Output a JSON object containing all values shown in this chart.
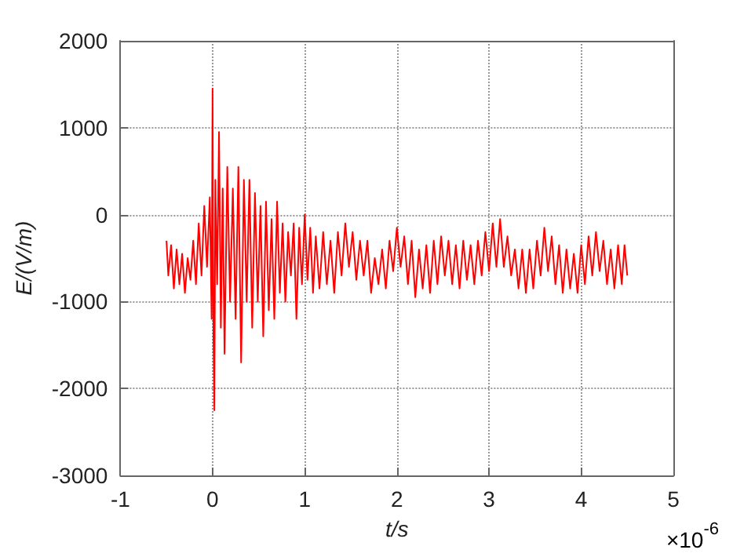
{
  "chart_data": {
    "type": "line",
    "xlabel": "t/s",
    "ylabel": "E/(V/m)",
    "annotations": [
      "×10$^{-6}$"
    ],
    "xlim": [
      -1,
      5
    ],
    "xticks": [
      -1,
      0,
      1,
      2,
      3,
      4,
      5
    ],
    "ylim": [
      -3000,
      2000
    ],
    "yticks": [
      -3000,
      -2000,
      -1000,
      0,
      1000,
      2000
    ],
    "grid": true,
    "marker": "none",
    "line_style": "solid",
    "series": [
      {
        "color": "#ff0000",
        "x": [
          -0.5,
          -0.48,
          -0.45,
          -0.42,
          -0.39,
          -0.36,
          -0.33,
          -0.3,
          -0.27,
          -0.24,
          -0.21,
          -0.18,
          -0.15,
          -0.12,
          -0.09,
          -0.06,
          -0.03,
          -0.01,
          0.0,
          0.01,
          0.02,
          0.03,
          0.05,
          0.07,
          0.09,
          0.11,
          0.13,
          0.16,
          0.19,
          0.22,
          0.25,
          0.28,
          0.31,
          0.34,
          0.37,
          0.4,
          0.43,
          0.46,
          0.49,
          0.52,
          0.55,
          0.58,
          0.61,
          0.64,
          0.67,
          0.7,
          0.73,
          0.76,
          0.79,
          0.82,
          0.85,
          0.88,
          0.91,
          0.94,
          0.97,
          1.0,
          1.03,
          1.06,
          1.09,
          1.12,
          1.16,
          1.2,
          1.24,
          1.28,
          1.32,
          1.36,
          1.4,
          1.44,
          1.48,
          1.52,
          1.56,
          1.6,
          1.64,
          1.68,
          1.72,
          1.76,
          1.8,
          1.84,
          1.88,
          1.92,
          1.96,
          2.0,
          2.04,
          2.08,
          2.12,
          2.16,
          2.2,
          2.24,
          2.28,
          2.32,
          2.36,
          2.4,
          2.44,
          2.48,
          2.52,
          2.56,
          2.6,
          2.64,
          2.68,
          2.72,
          2.76,
          2.8,
          2.84,
          2.88,
          2.92,
          2.96,
          3.0,
          3.04,
          3.08,
          3.12,
          3.16,
          3.2,
          3.24,
          3.28,
          3.32,
          3.36,
          3.4,
          3.44,
          3.48,
          3.52,
          3.56,
          3.6,
          3.64,
          3.68,
          3.72,
          3.76,
          3.8,
          3.84,
          3.88,
          3.92,
          3.96,
          4.0,
          4.04,
          4.08,
          4.12,
          4.16,
          4.2,
          4.24,
          4.28,
          4.32,
          4.36,
          4.4,
          4.44,
          4.47,
          4.5
        ],
        "values": [
          -300,
          -700,
          -350,
          -850,
          -400,
          -800,
          -450,
          -900,
          -500,
          -750,
          -300,
          -800,
          -100,
          -700,
          100,
          -600,
          200,
          -1200,
          1450,
          -1400,
          -2250,
          400,
          -800,
          950,
          -1300,
          300,
          -1600,
          550,
          -1000,
          300,
          -1200,
          550,
          -1700,
          400,
          -1000,
          400,
          -1300,
          250,
          -1000,
          100,
          -1400,
          150,
          -1100,
          -50,
          -1200,
          150,
          -900,
          -100,
          -1000,
          -200,
          -700,
          -100,
          -1200,
          -150,
          -800,
          0,
          -750,
          -150,
          -900,
          -250,
          -850,
          -200,
          -800,
          -300,
          -900,
          -200,
          -700,
          -100,
          -600,
          -200,
          -750,
          -300,
          -700,
          -300,
          -900,
          -500,
          -800,
          -400,
          -850,
          -300,
          -650,
          -150,
          -600,
          -250,
          -800,
          -300,
          -950,
          -400,
          -850,
          -350,
          -900,
          -300,
          -800,
          -250,
          -700,
          -300,
          -800,
          -350,
          -850,
          -300,
          -750,
          -350,
          -800,
          -300,
          -700,
          -200,
          -650,
          -100,
          -600,
          -50,
          -600,
          -250,
          -700,
          -400,
          -850,
          -400,
          -900,
          -400,
          -850,
          -300,
          -700,
          -150,
          -650,
          -250,
          -800,
          -350,
          -900,
          -400,
          -850,
          -450,
          -900,
          -350,
          -800,
          -250,
          -700,
          -200,
          -650,
          -300,
          -800,
          -400,
          -850,
          -350,
          -800,
          -350,
          -700
        ]
      }
    ]
  }
}
